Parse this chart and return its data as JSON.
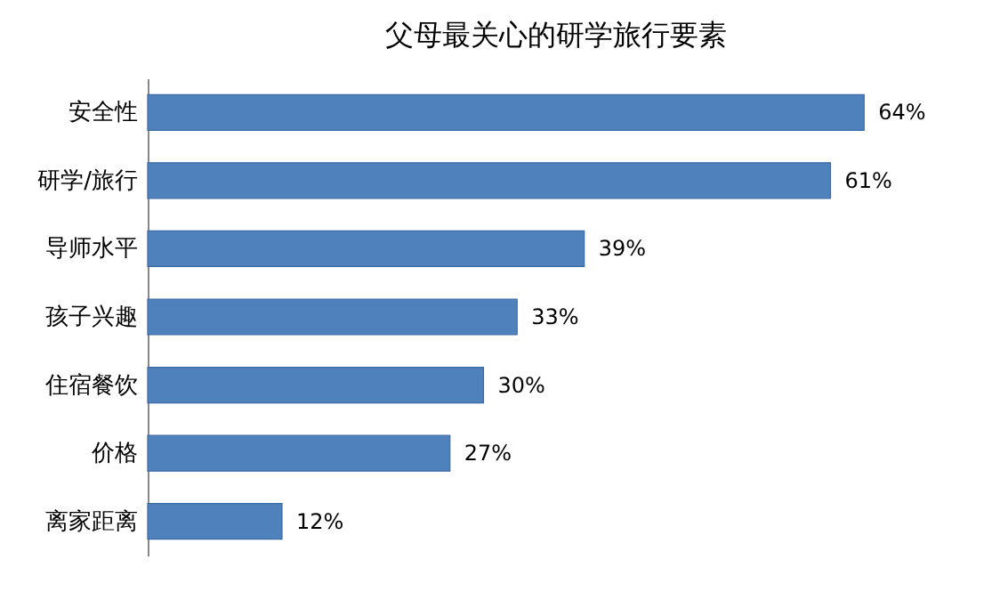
{
  "chart_data": {
    "type": "bar",
    "orientation": "horizontal",
    "title": "父母最关心的研学旅行要素",
    "categories": [
      "安全性",
      "研学/旅行",
      "导师水平",
      "孩子兴趣",
      "住宿餐饮",
      "价格",
      "离家距离"
    ],
    "values": [
      64,
      61,
      39,
      33,
      30,
      27,
      12
    ],
    "value_labels": [
      "64%",
      "61%",
      "39%",
      "33%",
      "30%",
      "27%",
      "12%"
    ],
    "color": "#4f81bd",
    "grid": false
  }
}
